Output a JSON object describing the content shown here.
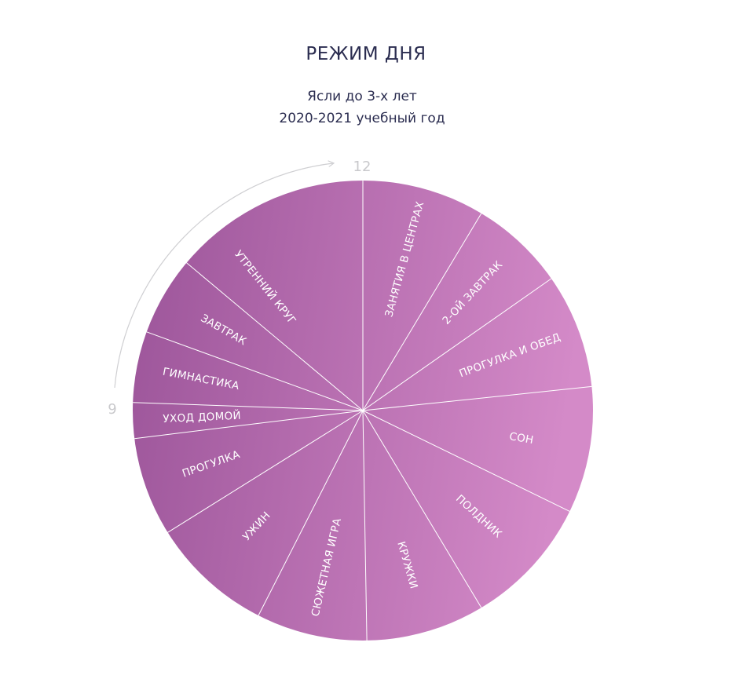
{
  "title": "РЕЖИМ ДНЯ",
  "subtitle_line1": "Ясли до 3-х лет",
  "subtitle_line2": "2020-2021 учебный год",
  "clock": {
    "mark_12": "12",
    "mark_9": "9"
  },
  "colors": {
    "grad_start": "#9b5499",
    "grad_end": "#d48ac8",
    "divider": "#ffffff",
    "arc": "#cfcfd2"
  },
  "segments": [
    "ЗАНЯТИЯ В ЦЕНТРАХ",
    "2-ОЙ ЗАВТРАК",
    "ПРОГУЛКА И ОБЕД",
    "СОН",
    "ПОЛДНИК",
    "КРУЖКИ",
    "СЮЖЕТНАЯ ИГРА",
    "УЖИН",
    "ПРОГУЛКА",
    "УХОД ДОМОЙ",
    "ГИМНАСТИКА",
    "ЗАВТРАК",
    "УТРЕННИЙ КРУГ"
  ]
}
